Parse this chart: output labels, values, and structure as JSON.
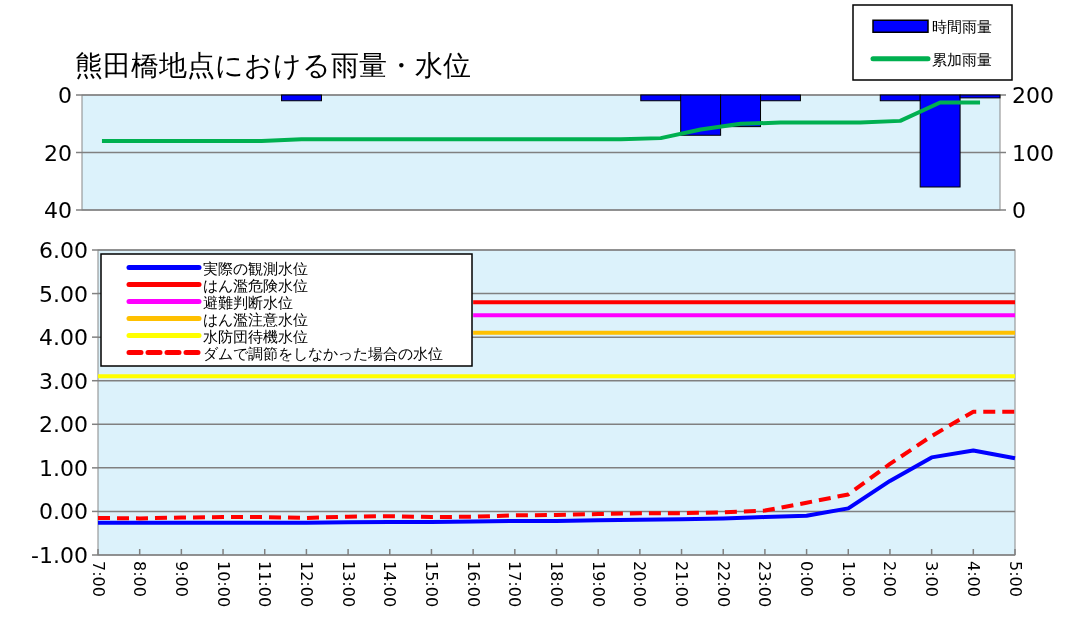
{
  "chart_data": [
    {
      "type": "bar",
      "title": "熊田橋地点における雨量・水位",
      "categories": [
        null,
        null,
        null,
        null,
        null,
        null,
        null,
        null,
        null,
        null,
        null,
        null,
        null,
        null,
        null,
        null,
        null,
        null,
        null,
        null,
        null,
        null,
        null
      ],
      "series": [
        {
          "name": "時間雨量",
          "color": "#0000ff",
          "values": [
            0,
            0,
            0,
            0,
            0,
            2,
            0,
            0,
            0,
            0,
            0,
            0,
            0,
            0,
            2,
            14,
            11,
            2,
            0,
            0,
            2,
            32,
            1
          ]
        },
        {
          "name": "累加雨量",
          "type": "line",
          "axis": "y2",
          "color": "#00b050",
          "values": [
            120,
            120,
            120,
            120,
            120,
            123,
            123,
            123,
            123,
            123,
            123,
            123,
            123,
            123,
            125,
            140,
            150,
            152,
            152,
            152,
            155,
            187,
            187
          ]
        }
      ],
      "ylim": [
        40,
        0
      ],
      "yticks": [
        0,
        20,
        40
      ],
      "y2lim": [
        0,
        200
      ],
      "y2ticks": [
        0,
        100,
        200
      ],
      "grid": "y",
      "legend": "top right"
    },
    {
      "type": "line",
      "categories": [
        "7:00",
        "8:00",
        "9:00",
        "10:00",
        "11:00",
        "12:00",
        "13:00",
        "14:00",
        "15:00",
        "16:00",
        "17:00",
        "18:00",
        "19:00",
        "20:00",
        "21:00",
        "22:00",
        "23:00",
        "0:00",
        "1:00",
        "2:00",
        "3:00",
        "4:00",
        "5:00"
      ],
      "series": [
        {
          "name": "実際の観測水位",
          "color": "#0000ff",
          "values": [
            -0.26,
            -0.26,
            -0.26,
            -0.26,
            -0.26,
            -0.26,
            -0.25,
            -0.24,
            -0.24,
            -0.23,
            -0.22,
            -0.22,
            -0.2,
            -0.19,
            -0.18,
            -0.16,
            -0.13,
            -0.1,
            0.07,
            0.7,
            1.24,
            1.4,
            1.22
          ]
        },
        {
          "name": "はん濫危険水位",
          "color": "#ff0000",
          "values": [
            null,
            null,
            null,
            null,
            null,
            null,
            null,
            null,
            null,
            4.8,
            4.8,
            4.8,
            4.8,
            4.8,
            4.8,
            4.8,
            4.8,
            4.8,
            4.8,
            4.8,
            4.8,
            4.8,
            4.8
          ]
        },
        {
          "name": "避難判断水位",
          "color": "#ff00ff",
          "values": [
            null,
            null,
            null,
            null,
            null,
            null,
            null,
            null,
            null,
            4.5,
            4.5,
            4.5,
            4.5,
            4.5,
            4.5,
            4.5,
            4.5,
            4.5,
            4.5,
            4.5,
            4.5,
            4.5,
            4.5
          ]
        },
        {
          "name": "はん濫注意水位",
          "color": "#ffc000",
          "values": [
            null,
            null,
            null,
            null,
            null,
            null,
            null,
            null,
            null,
            4.1,
            4.1,
            4.1,
            4.1,
            4.1,
            4.1,
            4.1,
            4.1,
            4.1,
            4.1,
            4.1,
            4.1,
            4.1,
            4.1
          ]
        },
        {
          "name": "水防団待機水位",
          "color": "#ffff00",
          "values": [
            3.1,
            3.1,
            3.1,
            3.1,
            3.1,
            3.1,
            3.1,
            3.1,
            3.1,
            3.1,
            3.1,
            3.1,
            3.1,
            3.1,
            3.1,
            3.1,
            3.1,
            3.1,
            3.1,
            3.1,
            3.1,
            3.1,
            3.1
          ]
        },
        {
          "name": "ダムで調節をしなかった場合の水位",
          "color": "#ff0000",
          "line_style": "dashed",
          "values": [
            -0.15,
            -0.16,
            -0.14,
            -0.13,
            -0.13,
            -0.15,
            -0.12,
            -0.11,
            -0.13,
            -0.12,
            -0.09,
            -0.08,
            -0.06,
            -0.04,
            -0.04,
            -0.02,
            0.02,
            0.2,
            0.39,
            1.09,
            1.73,
            2.29,
            2.29
          ]
        }
      ],
      "ylim": [
        -1,
        6
      ],
      "yticks": [
        {
          "value": -1,
          "label": "-1.00"
        },
        {
          "value": 0,
          "label": "0.00"
        },
        {
          "value": 1,
          "label": "1.00"
        },
        {
          "value": 2,
          "label": "2.00"
        },
        {
          "value": 3,
          "label": "3.00"
        },
        {
          "value": 4,
          "label": "4.00"
        },
        {
          "value": 5,
          "label": "5.00"
        },
        {
          "value": 6,
          "label": "6.00"
        }
      ],
      "grid": "y",
      "legend": "top left"
    }
  ]
}
